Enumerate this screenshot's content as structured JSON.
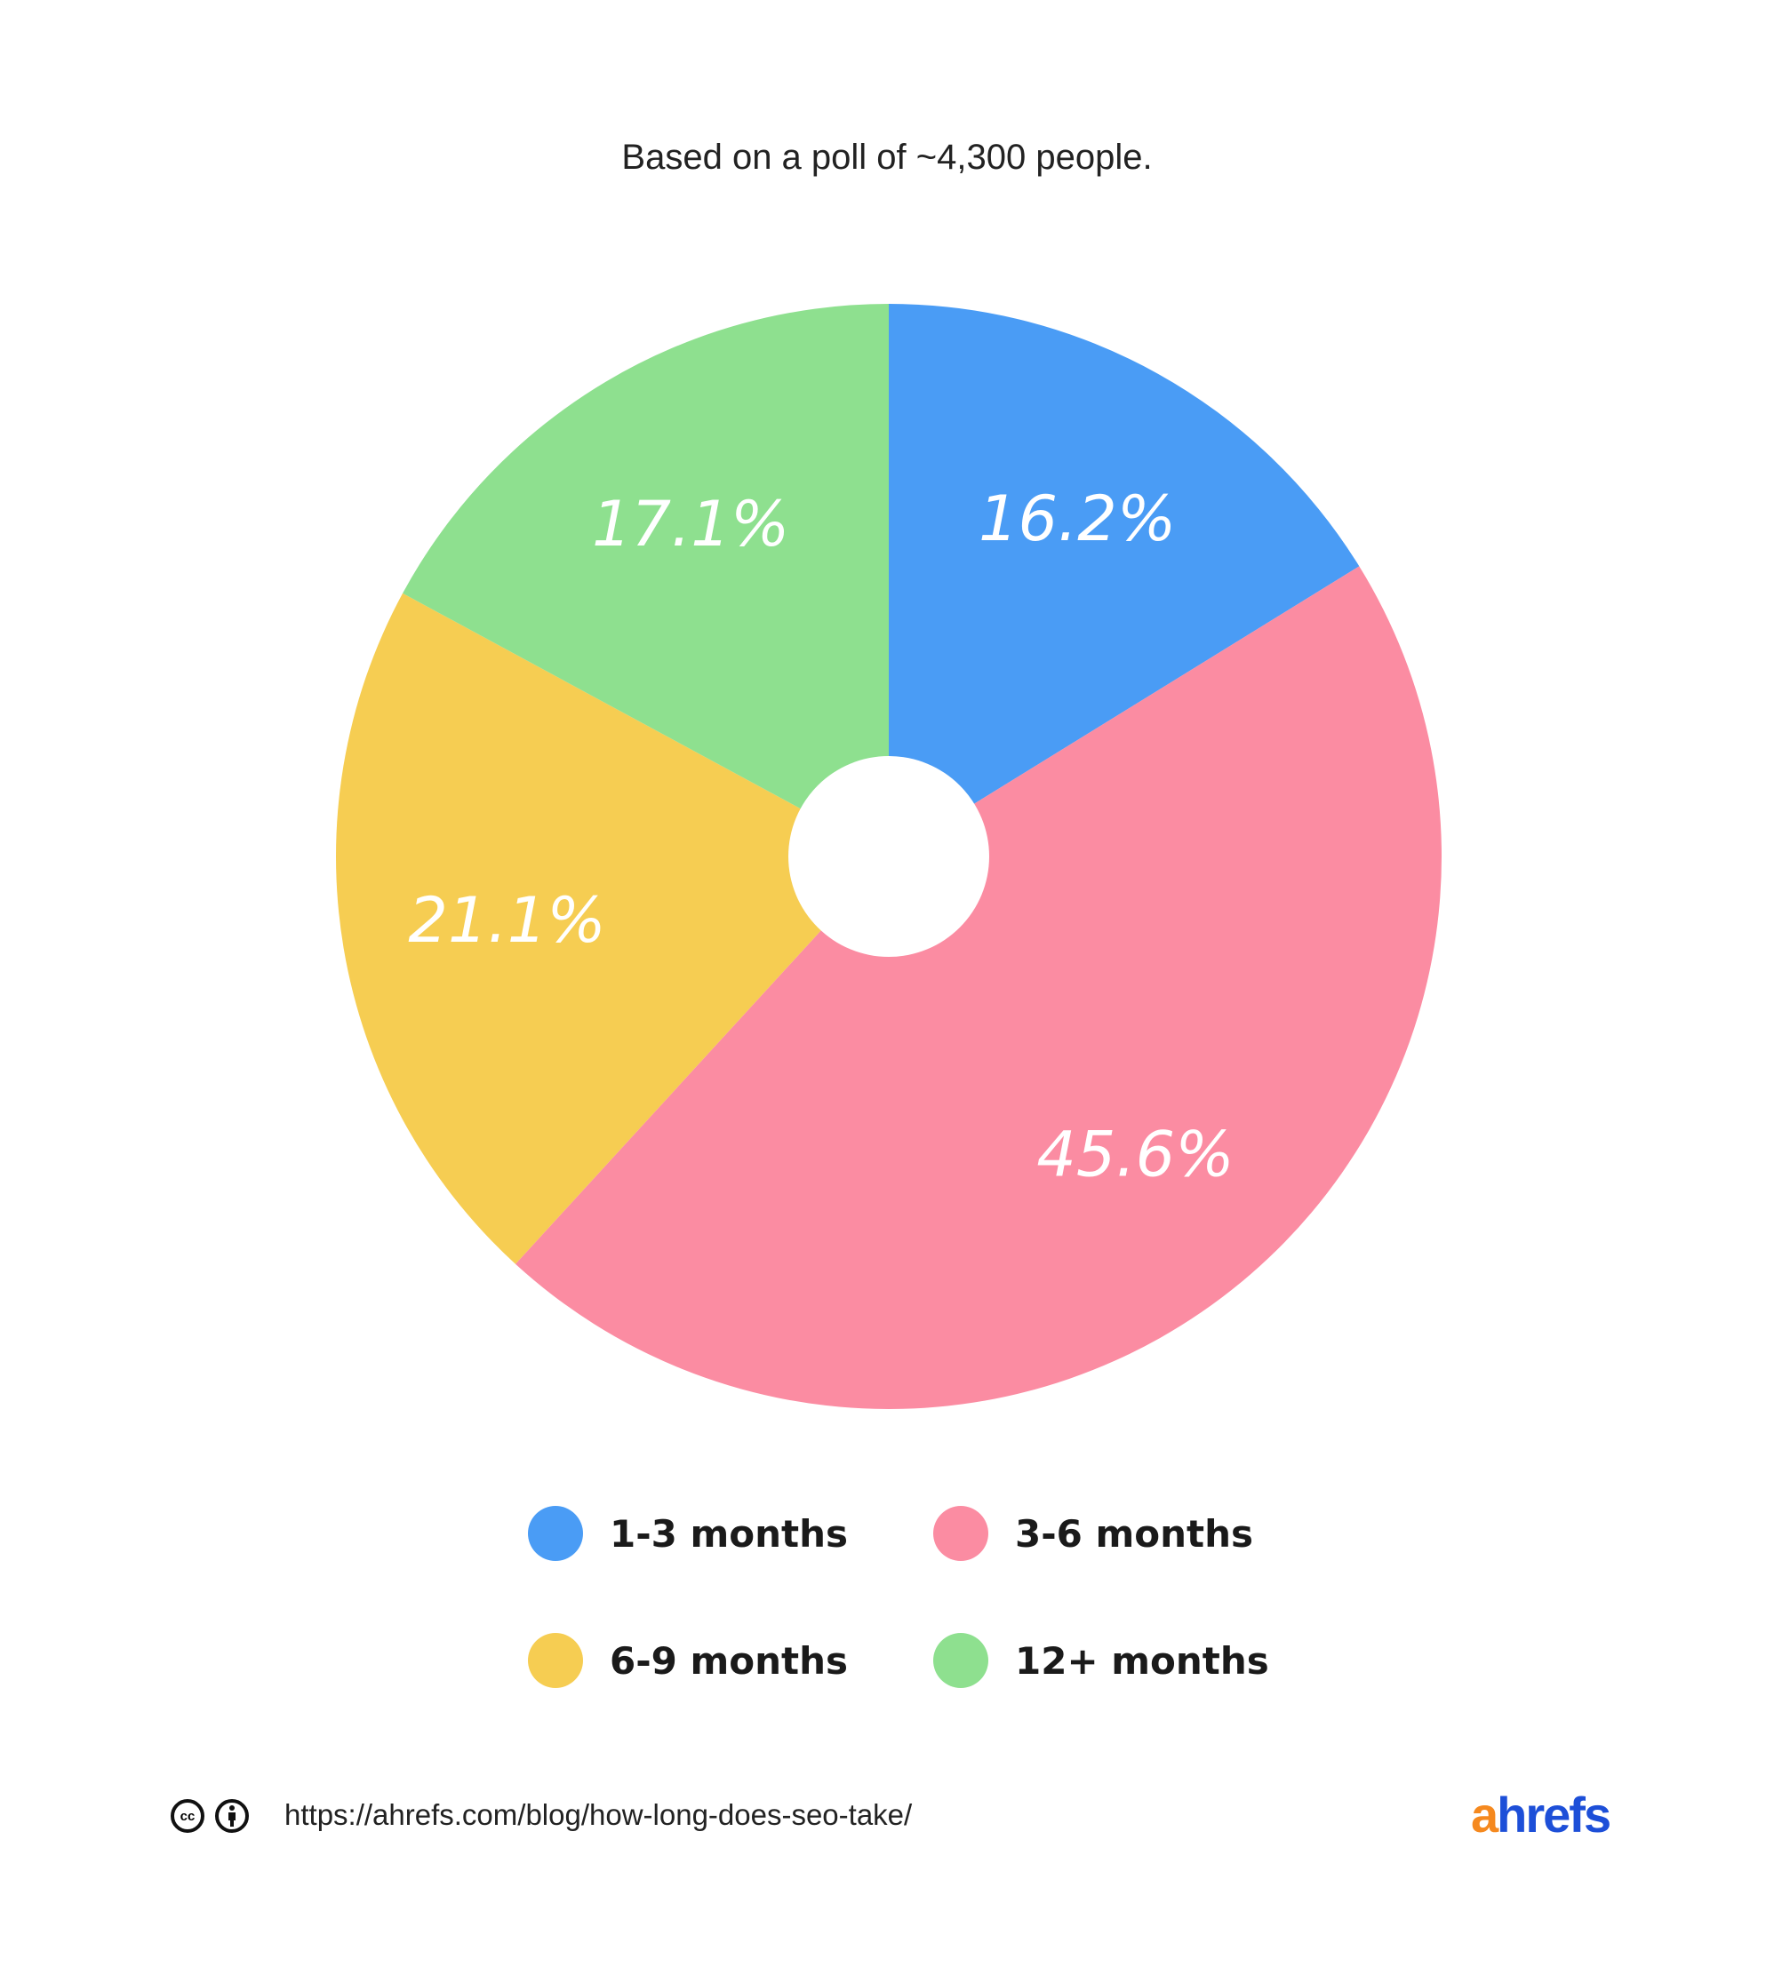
{
  "chart_data": {
    "type": "pie",
    "subtitle": "Based on a poll of ~4,300 people.",
    "categories": [
      "1-3 months",
      "3-6 months",
      "6-9 months",
      "12+ months"
    ],
    "values": [
      16.2,
      45.6,
      21.1,
      17.1
    ],
    "data_labels": [
      "16.2%",
      "45.6%",
      "21.1%",
      "17.1%"
    ],
    "colors": [
      "#4a9cf5",
      "#fb8ca2",
      "#f6cd52",
      "#8ee08f"
    ],
    "legend_position": "bottom",
    "donut": true
  },
  "footer": {
    "license_icons": [
      "creative-commons-icon",
      "attribution-icon"
    ],
    "cc_text": "cc",
    "url": "https://ahrefs.com/blog/how-long-does-seo-take/",
    "logo": {
      "accent": "a",
      "rest": "hrefs",
      "accent_color": "#f5891f",
      "color": "#1d4fd8"
    }
  }
}
